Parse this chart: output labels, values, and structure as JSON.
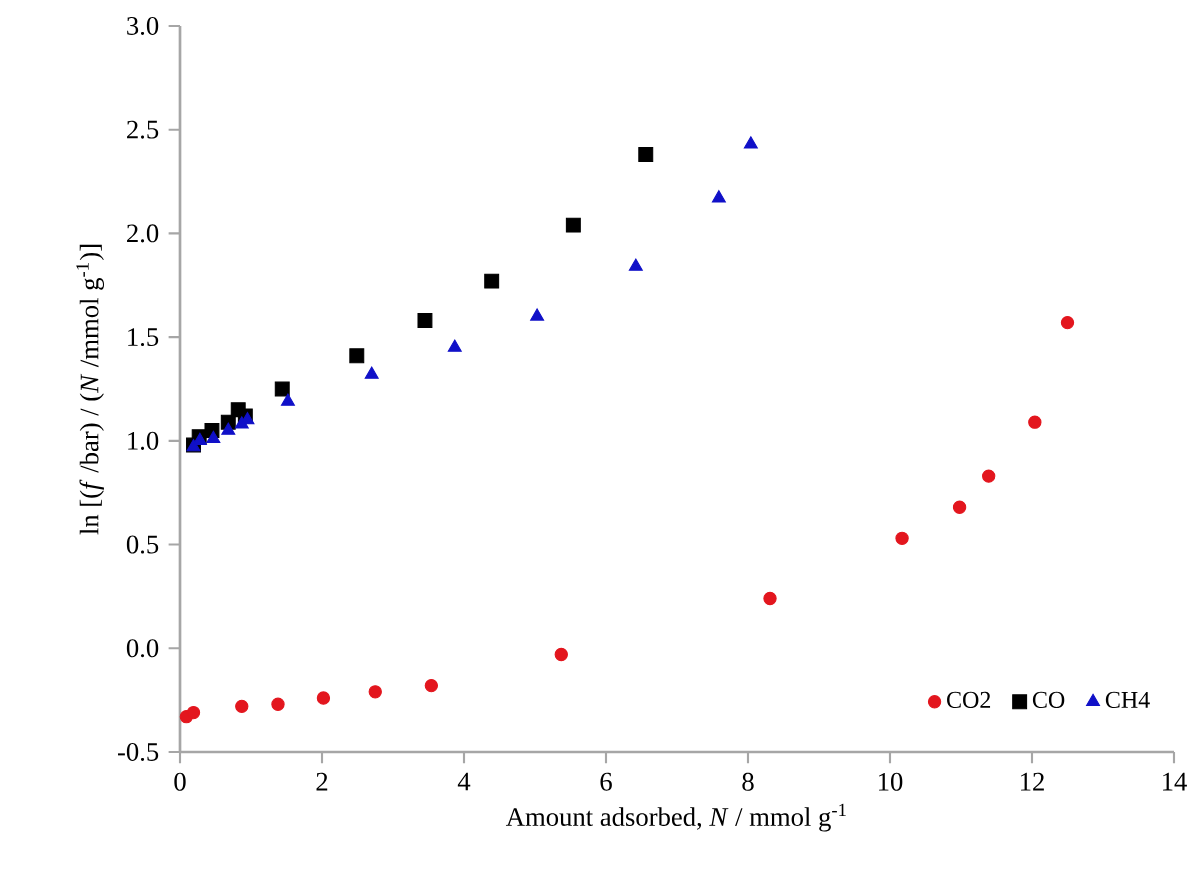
{
  "chart_data": {
    "type": "scatter",
    "xlabel": "Amount adsorbed, *N* / mmol g$^{-1}$",
    "ylabel": "ln [(*f* /bar) / (*N* /mmol g$^{-1}$)]",
    "xlim": [
      0,
      14
    ],
    "xticks": [
      0,
      2,
      4,
      6,
      8,
      10,
      12,
      14
    ],
    "ylim": [
      -0.5,
      3.0
    ],
    "yticks": [
      {
        "value": -0.5,
        "label": "-0.5"
      },
      {
        "value": 0,
        "label": "0.0"
      },
      {
        "value": 0.5,
        "label": "0.5"
      },
      {
        "value": 1,
        "label": "1.0"
      },
      {
        "value": 1.5,
        "label": "1.5"
      },
      {
        "value": 2,
        "label": "2.0"
      },
      {
        "value": 2.5,
        "label": "2.5"
      },
      {
        "value": 3,
        "label": "3.0"
      }
    ],
    "grid": false,
    "legend": "bottom right",
    "series": [
      {
        "name": "CO2",
        "color": "#e3161e",
        "marker": "circle",
        "x": [
          0.09,
          0.19,
          0.87,
          1.38,
          2.02,
          2.75,
          3.54,
          5.37,
          8.31,
          10.17,
          10.98,
          11.39,
          12.04,
          12.5
        ],
        "values": [
          -0.33,
          -0.31,
          -0.28,
          -0.27,
          -0.24,
          -0.21,
          -0.18,
          -0.03,
          0.24,
          0.53,
          0.68,
          0.83,
          1.09,
          1.57
        ]
      },
      {
        "name": "CO",
        "color": "#000000",
        "marker": "square",
        "x": [
          0.19,
          0.27,
          0.45,
          0.68,
          0.82,
          0.92,
          1.44,
          2.49,
          3.45,
          4.39,
          5.54,
          6.56
        ],
        "values": [
          0.98,
          1.02,
          1.05,
          1.09,
          1.15,
          1.12,
          1.25,
          1.41,
          1.58,
          1.77,
          2.04,
          2.38
        ]
      },
      {
        "name": "CH4",
        "color": "#1010c8",
        "marker": "triangle",
        "x": [
          0.19,
          0.28,
          0.47,
          0.68,
          0.87,
          0.95,
          1.52,
          2.7,
          3.87,
          5.03,
          6.42,
          7.59,
          8.04
        ],
        "values": [
          0.97,
          1.0,
          1.01,
          1.05,
          1.08,
          1.1,
          1.19,
          1.32,
          1.45,
          1.6,
          1.84,
          2.17,
          2.43
        ]
      }
    ]
  }
}
